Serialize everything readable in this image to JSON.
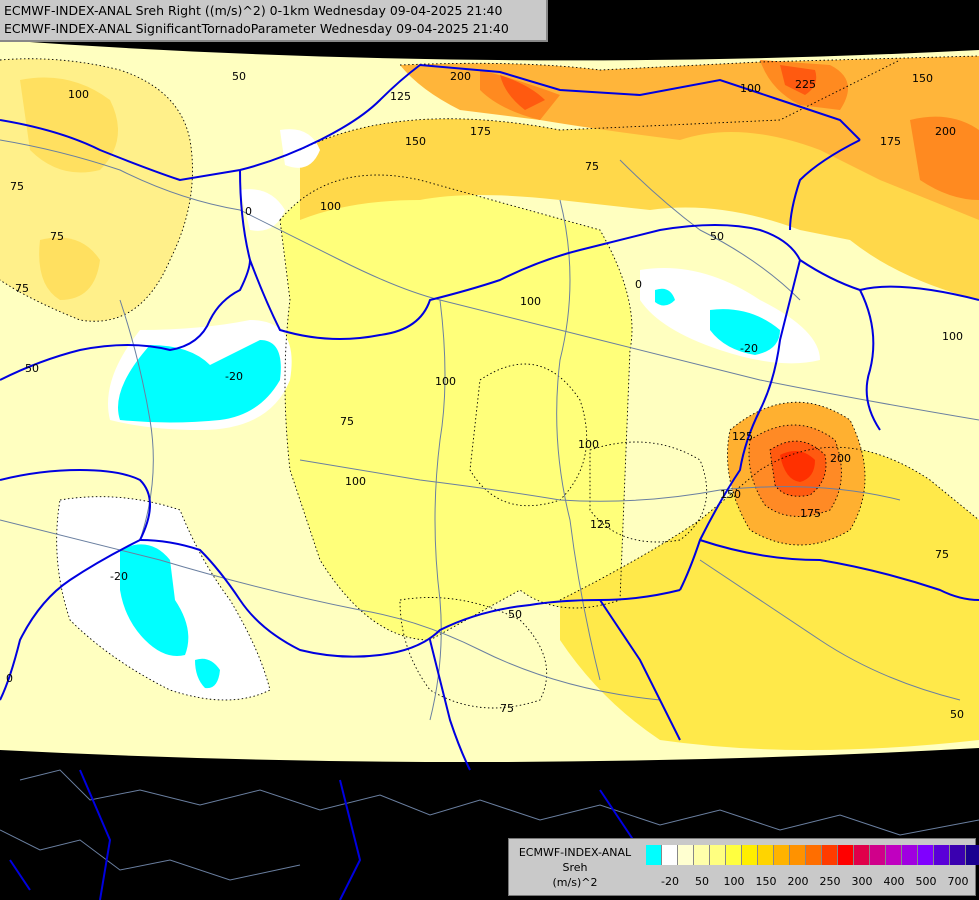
{
  "header": {
    "title_line_1": "ECMWF-INDEX-ANAL Sreh Right ((m/s)^2) 0-1km Wednesday 09-04-2025 21:40",
    "title_line_2": "ECMWF-INDEX-ANAL SignificantTornadoParameter Wednesday 09-04-2025 21:40"
  },
  "legend": {
    "line_1": "ECMWF-INDEX-ANAL",
    "line_2": "Sreh",
    "line_3": "(m/s)^2",
    "colors": [
      "#00ffff",
      "#ffffff",
      "#ffffd0",
      "#ffffaa",
      "#ffff80",
      "#ffff40",
      "#ffee00",
      "#ffd400",
      "#ffb300",
      "#ff9200",
      "#ff6e00",
      "#ff3c00",
      "#ff0000",
      "#e0004a",
      "#d0008a",
      "#c000c0",
      "#a000e0",
      "#8000ff",
      "#5a00d8",
      "#3a00b0",
      "#1a0090"
    ],
    "tick_labels": [
      "-20",
      "50",
      "100",
      "150",
      "200",
      "250",
      "300",
      "400",
      "500",
      "700"
    ]
  },
  "contour_labels": [
    "50",
    "100",
    "75",
    "0",
    "150",
    "175",
    "200",
    "225",
    "125",
    "-20"
  ],
  "map": {
    "background": "#000000",
    "border_color": "#0000e0",
    "river_color": "#6a7fa0",
    "base_fill": "#ffffc0"
  }
}
